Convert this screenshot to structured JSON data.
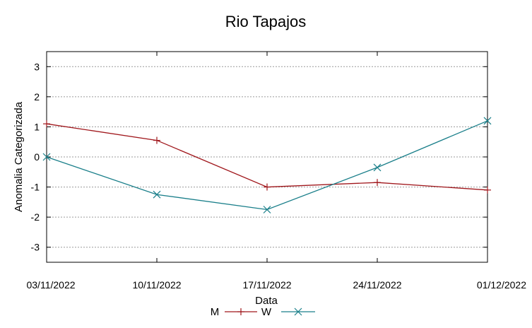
{
  "chart_data": {
    "type": "line",
    "title": "Rio Tapajos",
    "xlabel": "Data",
    "ylabel": "Anomalia Categorizada",
    "categories": [
      "03/11/2022",
      "10/11/2022",
      "17/11/2022",
      "24/11/2022",
      "01/12/2022"
    ],
    "ylim": [
      -3.5,
      3.5
    ],
    "yticks": [
      "3",
      "2",
      "1",
      "0",
      "-1",
      "-2",
      "-3"
    ],
    "ytick_values": [
      3,
      2,
      1,
      0,
      -1,
      -2,
      -3
    ],
    "grid": true,
    "legend_position": "bottom",
    "series": [
      {
        "name": "M",
        "values": [
          1.1,
          0.55,
          -1.0,
          -0.85,
          -1.1
        ],
        "color": "#a0171c",
        "marker": "plus"
      },
      {
        "name": "W",
        "values": [
          0.0,
          -1.25,
          -1.75,
          -0.35,
          1.2
        ],
        "color": "#1a7f8a",
        "marker": "cross"
      }
    ]
  }
}
